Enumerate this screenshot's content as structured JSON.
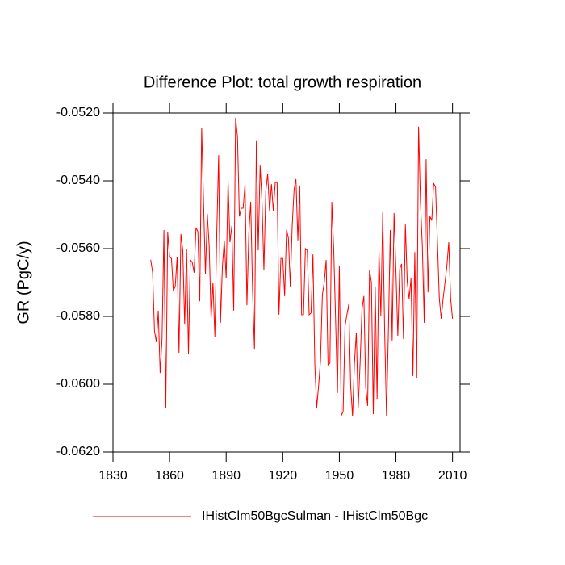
{
  "chart_data": {
    "type": "line",
    "title": "Difference Plot: total growth respiration",
    "y_label": "GR  (PgC/y)",
    "xlim": [
      1830,
      2014
    ],
    "xticks": [
      1830,
      1860,
      1890,
      1920,
      1950,
      1980,
      2010
    ],
    "ylim": [
      -0.062,
      -0.052
    ],
    "yticks": [
      {
        "value": -0.062,
        "label": "-0.0620"
      },
      {
        "value": -0.06,
        "label": "-0.0600"
      },
      {
        "value": -0.058,
        "label": "-0.0580"
      },
      {
        "value": -0.056,
        "label": "-0.0560"
      },
      {
        "value": -0.054,
        "label": "-0.0540"
      },
      {
        "value": -0.052,
        "label": "-0.0520"
      }
    ],
    "x": [
      1850,
      1851,
      1852,
      1853,
      1854,
      1855,
      1856,
      1857,
      1858,
      1859,
      1860,
      1861,
      1862,
      1863,
      1864,
      1865,
      1866,
      1867,
      1868,
      1869,
      1870,
      1871,
      1872,
      1873,
      1874,
      1875,
      1876,
      1877,
      1878,
      1879,
      1880,
      1881,
      1882,
      1883,
      1884,
      1885,
      1886,
      1887,
      1888,
      1889,
      1890,
      1891,
      1892,
      1893,
      1894,
      1895,
      1896,
      1897,
      1898,
      1899,
      1900,
      1901,
      1902,
      1903,
      1904,
      1905,
      1906,
      1907,
      1908,
      1909,
      1910,
      1911,
      1912,
      1913,
      1914,
      1915,
      1916,
      1917,
      1918,
      1919,
      1920,
      1921,
      1922,
      1923,
      1924,
      1925,
      1926,
      1927,
      1928,
      1929,
      1930,
      1931,
      1932,
      1933,
      1934,
      1935,
      1936,
      1937,
      1938,
      1939,
      1940,
      1941,
      1942,
      1943,
      1944,
      1945,
      1946,
      1947,
      1948,
      1949,
      1950,
      1951,
      1952,
      1953,
      1954,
      1955,
      1956,
      1957,
      1958,
      1959,
      1960,
      1961,
      1962,
      1963,
      1964,
      1965,
      1966,
      1967,
      1968,
      1969,
      1970,
      1971,
      1972,
      1973,
      1974,
      1975,
      1976,
      1977,
      1978,
      1979,
      1980,
      1981,
      1982,
      1983,
      1984,
      1985,
      1986,
      1987,
      1988,
      1989,
      1990,
      1991,
      1992,
      1993,
      1994,
      1995,
      1996,
      1997,
      1998,
      1999,
      2000,
      2001,
      2002,
      2003,
      2004,
      2005,
      2006,
      2007,
      2008,
      2009,
      2010
    ],
    "series": [
      {
        "name": "IHistClm50BgcSulman - IHistClm50Bgc",
        "color": "#ff0000",
        "values": [
          -0.05633,
          -0.05671,
          -0.05843,
          -0.05876,
          -0.05783,
          -0.05967,
          -0.05867,
          -0.05545,
          -0.06071,
          -0.05552,
          -0.05624,
          -0.05629,
          -0.05724,
          -0.05712,
          -0.05624,
          -0.05907,
          -0.05557,
          -0.05605,
          -0.05824,
          -0.056,
          -0.0591,
          -0.05633,
          -0.0564,
          -0.05671,
          -0.05538,
          -0.0555,
          -0.05755,
          -0.05243,
          -0.05462,
          -0.05676,
          -0.05498,
          -0.05593,
          -0.05807,
          -0.057,
          -0.0586,
          -0.05557,
          -0.05324,
          -0.05819,
          -0.05652,
          -0.05576,
          -0.05688,
          -0.054,
          -0.05581,
          -0.05533,
          -0.05783,
          -0.05214,
          -0.05271,
          -0.05505,
          -0.05481,
          -0.05481,
          -0.0541,
          -0.05767,
          -0.05557,
          -0.05462,
          -0.05724,
          -0.05898,
          -0.05283,
          -0.05605,
          -0.05355,
          -0.05462,
          -0.05664,
          -0.05431,
          -0.05379,
          -0.0549,
          -0.0541,
          -0.0549,
          -0.05405,
          -0.05405,
          -0.05795,
          -0.05629,
          -0.05629,
          -0.0574,
          -0.05545,
          -0.05569,
          -0.05712,
          -0.05533,
          -0.05426,
          -0.05395,
          -0.05576,
          -0.05414,
          -0.05795,
          -0.05795,
          -0.056,
          -0.05605,
          -0.05795,
          -0.0579,
          -0.05617,
          -0.05943,
          -0.06069,
          -0.06005,
          -0.05931,
          -0.05736,
          -0.057,
          -0.05633,
          -0.05943,
          -0.05938,
          -0.05462,
          -0.056,
          -0.05807,
          -0.06026,
          -0.05652,
          -0.06093,
          -0.06081,
          -0.05829,
          -0.05795,
          -0.05764,
          -0.06005,
          -0.06095,
          -0.05938,
          -0.05848,
          -0.06069,
          -0.05938,
          -0.05779,
          -0.0574,
          -0.0601,
          -0.06064,
          -0.05662,
          -0.057,
          -0.06088,
          -0.05712,
          -0.06043,
          -0.05605,
          -0.05798,
          -0.05493,
          -0.0584,
          -0.06093,
          -0.05843,
          -0.05545,
          -0.05871,
          -0.05495,
          -0.05667,
          -0.05857,
          -0.0566,
          -0.05645,
          -0.05867,
          -0.05529,
          -0.05698,
          -0.05748,
          -0.05688,
          -0.05976,
          -0.0561,
          -0.05981,
          -0.0524,
          -0.05462,
          -0.05593,
          -0.05819,
          -0.05336,
          -0.05729,
          -0.05505,
          -0.05517,
          -0.05407,
          -0.05419,
          -0.05581,
          -0.05748,
          -0.05807,
          -0.05748,
          -0.057,
          -0.05652,
          -0.05581,
          -0.05748,
          -0.05807
        ]
      }
    ]
  }
}
